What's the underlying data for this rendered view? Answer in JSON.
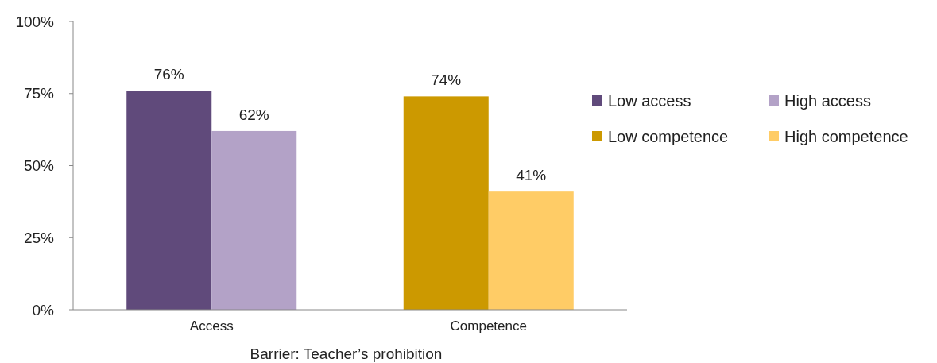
{
  "chart_data": {
    "type": "bar",
    "xlabel": "Barrier: Teacher’s prohibition",
    "categories": [
      "Access",
      "Competence"
    ],
    "series": [
      {
        "name": "Low access",
        "color": "#604a7b",
        "values": [
          76,
          null
        ],
        "value_labels": [
          "76%",
          null
        ]
      },
      {
        "name": "High access",
        "color": "#b3a2c7",
        "values": [
          62,
          null
        ],
        "value_labels": [
          "62%",
          null
        ]
      },
      {
        "name": "Low competence",
        "color": "#cc9900",
        "values": [
          null,
          74
        ],
        "value_labels": [
          null,
          "74%"
        ]
      },
      {
        "name": "High competence",
        "color": "#ffcc66",
        "values": [
          null,
          41
        ],
        "value_labels": [
          null,
          "41%"
        ]
      }
    ],
    "ylim": [
      0,
      100
    ],
    "yticks": [
      {
        "value": 0,
        "label": "0%"
      },
      {
        "value": 25,
        "label": "25%"
      },
      {
        "value": 50,
        "label": "50%"
      },
      {
        "value": 75,
        "label": "75%"
      },
      {
        "value": 100,
        "label": "100%"
      }
    ],
    "grid": false,
    "legend": "right"
  }
}
